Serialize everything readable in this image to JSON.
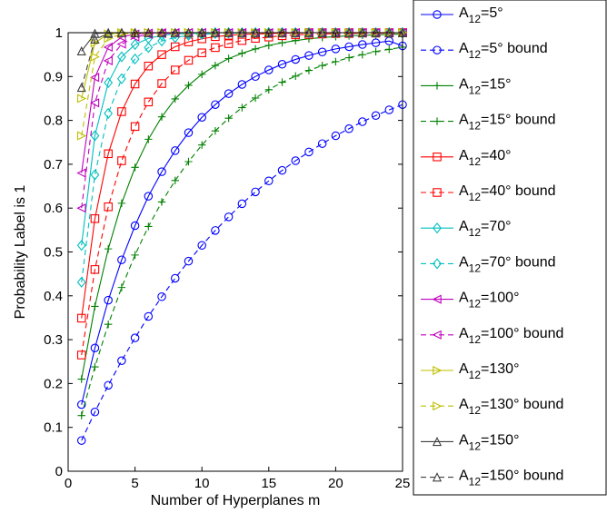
{
  "chart_data": {
    "type": "line",
    "title": "",
    "xlabel": "Number of Hyperplanes m",
    "ylabel": "Probability Label is 1",
    "xlim": [
      0,
      25
    ],
    "ylim": [
      0,
      1
    ],
    "xticks": [
      0,
      5,
      10,
      15,
      20,
      25
    ],
    "yticks": [
      0,
      0.1,
      0.2,
      0.3,
      0.4,
      0.5,
      0.6,
      0.7,
      0.8,
      0.9,
      1
    ],
    "xtick_labels": [
      "0",
      "5",
      "10",
      "15",
      "20",
      "25"
    ],
    "ytick_labels": [
      "0",
      "0.1",
      "0.2",
      "0.3",
      "0.4",
      "0.5",
      "0.6",
      "0.7",
      "0.8",
      "0.9",
      "1"
    ],
    "grid": false,
    "legend_position": "outside-right",
    "x": [
      1,
      2,
      3,
      4,
      5,
      6,
      7,
      8,
      9,
      10,
      11,
      12,
      13,
      14,
      15,
      16,
      17,
      18,
      19,
      20,
      21,
      22,
      23,
      24,
      25
    ],
    "series": [
      {
        "name_main": "A",
        "name_sub": "12",
        "name_rest": "=5°",
        "color": "#0000ff",
        "dash": "solid",
        "marker": "circle",
        "values": [
          0.152,
          0.281,
          0.39,
          0.482,
          0.56,
          0.627,
          0.683,
          0.731,
          0.772,
          0.807,
          0.836,
          0.861,
          0.882,
          0.9,
          0.915,
          0.928,
          0.939,
          0.948,
          0.956,
          0.963,
          0.968,
          0.973,
          0.977,
          0.981,
          0.97
        ]
      },
      {
        "name_main": "A",
        "name_sub": "12",
        "name_rest": "=5° bound",
        "color": "#0000ff",
        "dash": "dashed",
        "marker": "circle",
        "values": [
          0.07,
          0.135,
          0.196,
          0.252,
          0.304,
          0.353,
          0.398,
          0.44,
          0.479,
          0.515,
          0.549,
          0.58,
          0.61,
          0.637,
          0.662,
          0.686,
          0.708,
          0.728,
          0.747,
          0.765,
          0.781,
          0.797,
          0.811,
          0.824,
          0.836
        ]
      },
      {
        "name_main": "A",
        "name_sub": "12",
        "name_rest": "=15°",
        "color": "#008000",
        "dash": "solid",
        "marker": "plus",
        "values": [
          0.21,
          0.376,
          0.507,
          0.611,
          0.693,
          0.757,
          0.808,
          0.849,
          0.88,
          0.905,
          0.925,
          0.941,
          0.953,
          0.963,
          0.971,
          0.977,
          0.982,
          0.986,
          0.989,
          0.991,
          0.993,
          0.994,
          0.995,
          0.996,
          0.997
        ]
      },
      {
        "name_main": "A",
        "name_sub": "12",
        "name_rest": "=15° bound",
        "color": "#008000",
        "dash": "dashed",
        "marker": "plus",
        "values": [
          0.127,
          0.238,
          0.335,
          0.419,
          0.493,
          0.558,
          0.614,
          0.663,
          0.706,
          0.744,
          0.776,
          0.805,
          0.829,
          0.851,
          0.87,
          0.887,
          0.901,
          0.914,
          0.925,
          0.934,
          0.943,
          0.95,
          0.957,
          0.962,
          0.967
        ]
      },
      {
        "name_main": "A",
        "name_sub": "12",
        "name_rest": "=40°",
        "color": "#ff0000",
        "dash": "solid",
        "marker": "square",
        "values": [
          0.349,
          0.576,
          0.724,
          0.82,
          0.883,
          0.924,
          0.95,
          0.968,
          0.979,
          0.986,
          0.991,
          0.994,
          0.996,
          0.997,
          0.998,
          0.999,
          0.999,
          1.0,
          1.0,
          1.0,
          1.0,
          1.0,
          1.0,
          1.0,
          1.0
        ]
      },
      {
        "name_main": "A",
        "name_sub": "12",
        "name_rest": "=40° bound",
        "color": "#ff0000",
        "dash": "dashed",
        "marker": "square",
        "values": [
          0.265,
          0.46,
          0.603,
          0.708,
          0.786,
          0.842,
          0.884,
          0.915,
          0.937,
          0.954,
          0.966,
          0.975,
          0.982,
          0.987,
          0.99,
          0.993,
          0.995,
          0.996,
          0.997,
          0.998,
          0.998,
          0.999,
          0.999,
          0.999,
          1.0
        ]
      },
      {
        "name_main": "A",
        "name_sub": "12",
        "name_rest": "=70°",
        "color": "#00bfbf",
        "dash": "solid",
        "marker": "diamond",
        "values": [
          0.515,
          0.765,
          0.886,
          0.945,
          0.973,
          0.987,
          0.994,
          0.997,
          0.998,
          0.999,
          1.0,
          1.0,
          1.0,
          1.0,
          1.0,
          1.0,
          1.0,
          1.0,
          1.0,
          1.0,
          1.0,
          1.0,
          1.0,
          1.0,
          1.0
        ]
      },
      {
        "name_main": "A",
        "name_sub": "12",
        "name_rest": "=70° bound",
        "color": "#00bfbf",
        "dash": "dashed",
        "marker": "diamond",
        "values": [
          0.431,
          0.676,
          0.816,
          0.895,
          0.94,
          0.966,
          0.981,
          0.989,
          0.994,
          0.996,
          0.998,
          0.999,
          0.999,
          1.0,
          1.0,
          1.0,
          1.0,
          1.0,
          1.0,
          1.0,
          1.0,
          1.0,
          1.0,
          1.0,
          1.0
        ]
      },
      {
        "name_main": "A",
        "name_sub": "12",
        "name_rest": "=100°",
        "color": "#bf00bf",
        "dash": "solid",
        "marker": "triangle-left",
        "values": [
          0.68,
          0.898,
          0.967,
          0.99,
          0.997,
          0.999,
          1.0,
          1.0,
          1.0,
          1.0,
          1.0,
          1.0,
          1.0,
          1.0,
          1.0,
          1.0,
          1.0,
          1.0,
          1.0,
          1.0,
          1.0,
          1.0,
          1.0,
          1.0,
          1.0
        ]
      },
      {
        "name_main": "A",
        "name_sub": "12",
        "name_rest": "=100° bound",
        "color": "#bf00bf",
        "dash": "dashed",
        "marker": "triangle-left",
        "values": [
          0.6,
          0.84,
          0.936,
          0.974,
          0.99,
          0.996,
          0.998,
          0.999,
          1.0,
          1.0,
          1.0,
          1.0,
          1.0,
          1.0,
          1.0,
          1.0,
          1.0,
          1.0,
          1.0,
          1.0,
          1.0,
          1.0,
          1.0,
          1.0,
          1.0
        ]
      },
      {
        "name_main": "A",
        "name_sub": "12",
        "name_rest": "=130°",
        "color": "#bfbf00",
        "dash": "solid",
        "marker": "triangle-right",
        "values": [
          0.85,
          0.977,
          0.997,
          1.0,
          1.0,
          1.0,
          1.0,
          1.0,
          1.0,
          1.0,
          1.0,
          1.0,
          1.0,
          1.0,
          1.0,
          1.0,
          1.0,
          1.0,
          1.0,
          1.0,
          1.0,
          1.0,
          1.0,
          1.0,
          1.0
        ]
      },
      {
        "name_main": "A",
        "name_sub": "12",
        "name_rest": "=130° bound",
        "color": "#bfbf00",
        "dash": "dashed",
        "marker": "triangle-right",
        "values": [
          0.765,
          0.945,
          0.987,
          0.997,
          0.999,
          1.0,
          1.0,
          1.0,
          1.0,
          1.0,
          1.0,
          1.0,
          1.0,
          1.0,
          1.0,
          1.0,
          1.0,
          1.0,
          1.0,
          1.0,
          1.0,
          1.0,
          1.0,
          1.0,
          1.0
        ]
      },
      {
        "name_main": "A",
        "name_sub": "12",
        "name_rest": "=150°",
        "color": "#404040",
        "dash": "solid",
        "marker": "triangle-up",
        "values": [
          0.958,
          0.998,
          1.0,
          1.0,
          1.0,
          1.0,
          1.0,
          1.0,
          1.0,
          1.0,
          1.0,
          1.0,
          1.0,
          1.0,
          1.0,
          1.0,
          1.0,
          1.0,
          1.0,
          1.0,
          1.0,
          1.0,
          1.0,
          1.0,
          1.0
        ]
      },
      {
        "name_main": "A",
        "name_sub": "12",
        "name_rest": "=150° bound",
        "color": "#404040",
        "dash": "dashed",
        "marker": "triangle-up",
        "values": [
          0.875,
          0.985,
          0.998,
          1.0,
          1.0,
          1.0,
          1.0,
          1.0,
          1.0,
          1.0,
          1.0,
          1.0,
          1.0,
          1.0,
          1.0,
          1.0,
          1.0,
          1.0,
          1.0,
          1.0,
          1.0,
          1.0,
          1.0,
          1.0,
          1.0
        ]
      }
    ]
  }
}
